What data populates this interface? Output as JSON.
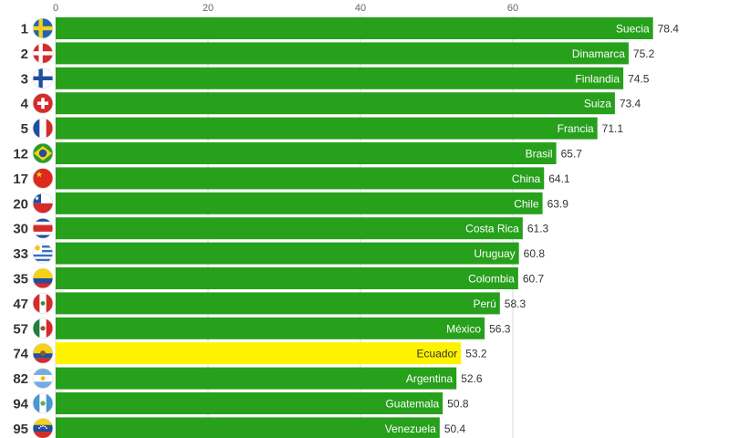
{
  "chart_data": {
    "type": "bar",
    "orientation": "horizontal",
    "xlim": [
      0,
      80
    ],
    "x_ticks": [
      0,
      20,
      40,
      60
    ],
    "grid": true,
    "bar_color": "#27a01c",
    "highlight_color": "#fff200",
    "rows": [
      {
        "rank": "1",
        "country": "Suecia",
        "value": 78.4,
        "flag": "sweden-flag-icon"
      },
      {
        "rank": "2",
        "country": "Dinamarca",
        "value": 75.2,
        "flag": "denmark-flag-icon"
      },
      {
        "rank": "3",
        "country": "Finlandia",
        "value": 74.5,
        "flag": "finland-flag-icon"
      },
      {
        "rank": "4",
        "country": "Suiza",
        "value": 73.4,
        "flag": "switzerland-flag-icon"
      },
      {
        "rank": "5",
        "country": "Francia",
        "value": 71.1,
        "flag": "france-flag-icon"
      },
      {
        "rank": "12",
        "country": "Brasil",
        "value": 65.7,
        "flag": "brazil-flag-icon"
      },
      {
        "rank": "17",
        "country": "China",
        "value": 64.1,
        "flag": "china-flag-icon"
      },
      {
        "rank": "20",
        "country": "Chile",
        "value": 63.9,
        "flag": "chile-flag-icon"
      },
      {
        "rank": "30",
        "country": "Costa Rica",
        "value": 61.3,
        "flag": "costa-rica-flag-icon"
      },
      {
        "rank": "33",
        "country": "Uruguay",
        "value": 60.8,
        "flag": "uruguay-flag-icon"
      },
      {
        "rank": "35",
        "country": "Colombia",
        "value": 60.7,
        "flag": "colombia-flag-icon"
      },
      {
        "rank": "47",
        "country": "Perú",
        "value": 58.3,
        "flag": "peru-flag-icon"
      },
      {
        "rank": "57",
        "country": "México",
        "value": 56.3,
        "flag": "mexico-flag-icon"
      },
      {
        "rank": "74",
        "country": "Ecuador",
        "value": 53.2,
        "flag": "ecuador-flag-icon",
        "highlight": true
      },
      {
        "rank": "82",
        "country": "Argentina",
        "value": 52.6,
        "flag": "argentina-flag-icon"
      },
      {
        "rank": "94",
        "country": "Guatemala",
        "value": 50.8,
        "flag": "guatemala-flag-icon"
      },
      {
        "rank": "95",
        "country": "Venezuela",
        "value": 50.4,
        "flag": "venezuela-flag-icon"
      }
    ]
  }
}
